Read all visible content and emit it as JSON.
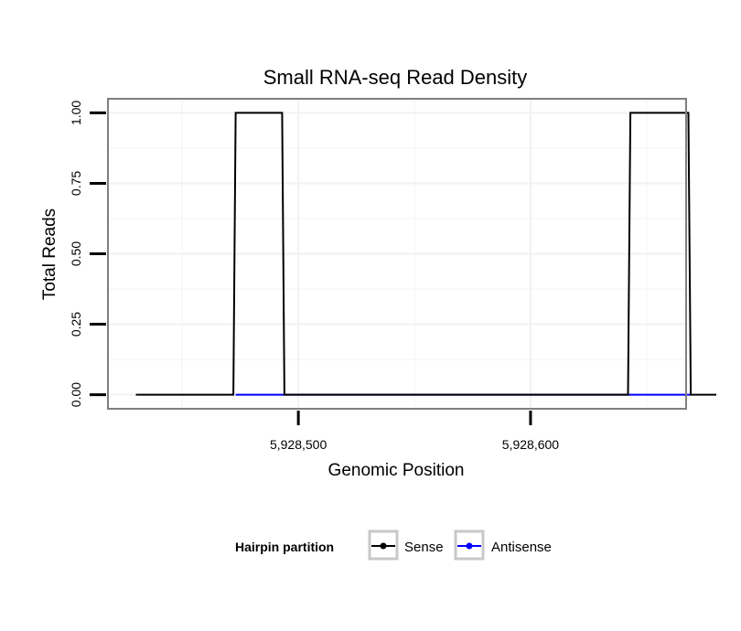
{
  "chart_data": {
    "type": "line",
    "title": "Small RNA-seq Read Density",
    "xlabel": "Genomic Position",
    "ylabel": "Total Reads",
    "xlim": [
      5928418,
      5928667
    ],
    "ylim": [
      -0.05,
      1.05
    ],
    "x_ticks": [
      {
        "value": 5928500,
        "label": "5,928,500"
      },
      {
        "value": 5928600,
        "label": "5,928,600"
      }
    ],
    "y_ticks": [
      {
        "value": 0,
        "label": "0.00"
      },
      {
        "value": 0.25,
        "label": "0.25"
      },
      {
        "value": 0.5,
        "label": "0.50"
      },
      {
        "value": 0.75,
        "label": "0.75"
      },
      {
        "value": 1.0,
        "label": "1.00"
      }
    ],
    "grid": true,
    "series": [
      {
        "name": "Sense",
        "color": "#000000",
        "x": [
          5928430,
          5928472,
          5928473,
          5928493,
          5928494,
          5928642,
          5928643,
          5928668,
          5928669,
          5928680
        ],
        "values": [
          0,
          0,
          1,
          1,
          0,
          0,
          1,
          1,
          0,
          0
        ]
      },
      {
        "name": "Antisense",
        "color": "#0000ff",
        "x": [
          5928473,
          5928494,
          5928643,
          5928669
        ],
        "values": [
          0,
          0,
          0,
          0
        ]
      }
    ],
    "legend": {
      "title": "Hairpin partition",
      "position": "bottom",
      "entries": [
        "Sense",
        "Antisense"
      ]
    }
  }
}
